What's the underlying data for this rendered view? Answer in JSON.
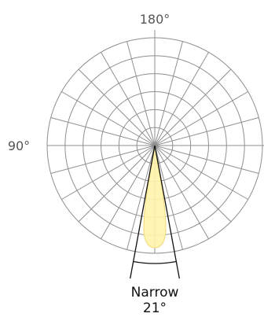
{
  "chart_data": {
    "type": "polar",
    "angle_ticks": [
      {
        "angle": 180,
        "label": "180°"
      },
      {
        "angle": 90,
        "label": "90°"
      }
    ],
    "rings": 6,
    "spokes_deg_step": 15,
    "beam": {
      "name": "Narrow",
      "angle_label": "21°",
      "beam_angle_deg": 21,
      "direction_deg": 0,
      "distribution_color": "#fff3a8",
      "distribution_stroke": "#efd97a"
    },
    "grid_color": "#8f8f8f",
    "label_color": "#555555"
  }
}
